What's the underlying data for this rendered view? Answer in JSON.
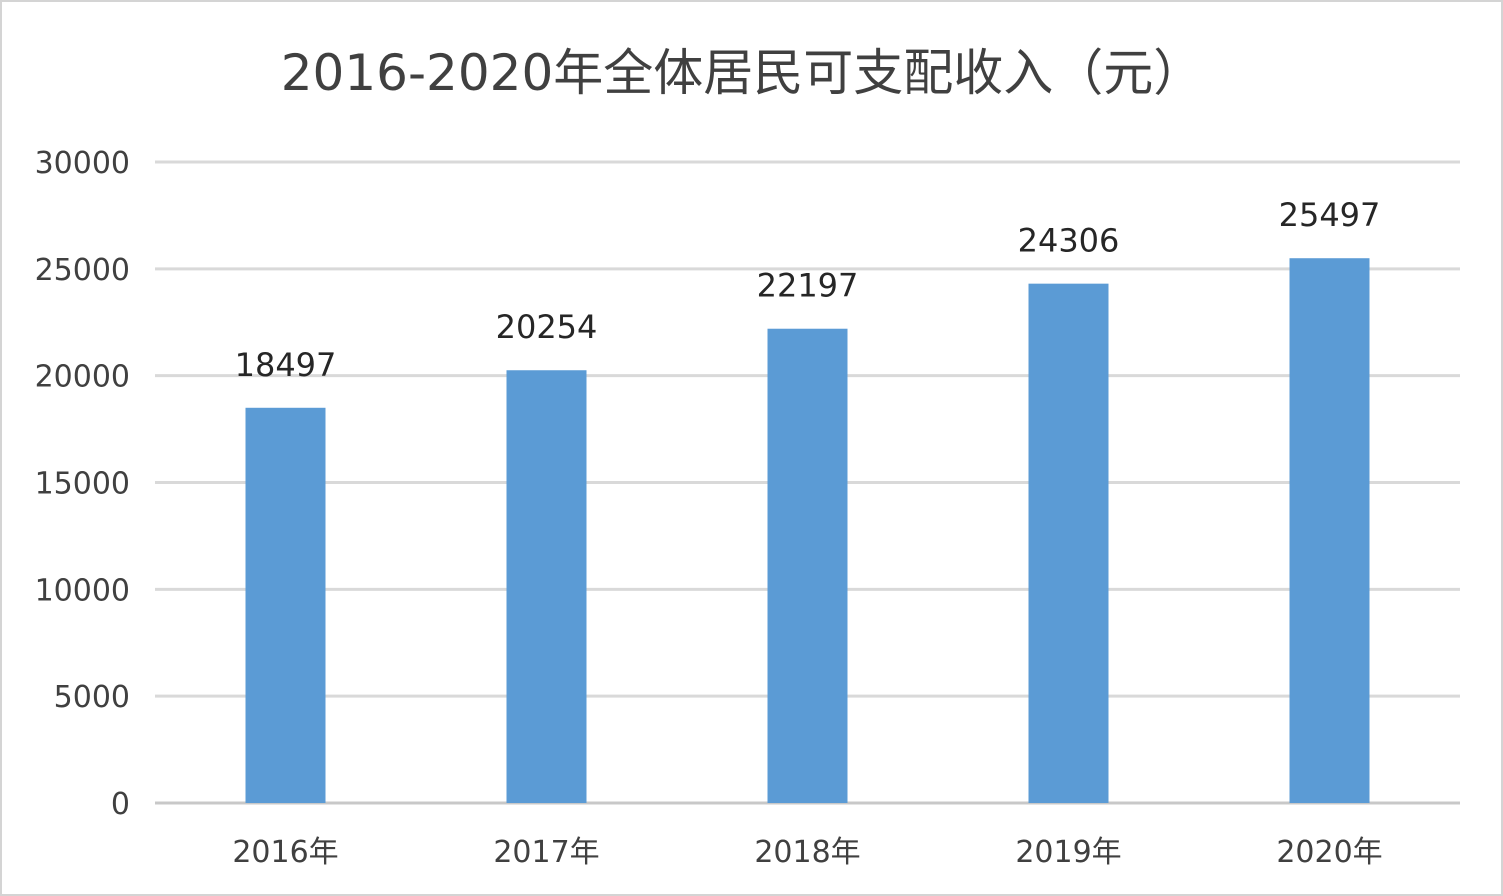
{
  "chart_data": {
    "type": "bar",
    "title": "2016-2020年全体居民可支配收入（元）",
    "categories": [
      "2016年",
      "2017年",
      "2018年",
      "2019年",
      "2020年"
    ],
    "values": [
      18497,
      20254,
      22197,
      24306,
      25497
    ],
    "data_labels": [
      "18497",
      "20254",
      "22197",
      "24306",
      "25497"
    ],
    "ylim": [
      0,
      30000
    ],
    "yticks": [
      0,
      5000,
      10000,
      15000,
      20000,
      25000,
      30000
    ],
    "ytick_labels": [
      "0",
      "5000",
      "10000",
      "15000",
      "20000",
      "25000",
      "30000"
    ],
    "xlabel": "",
    "ylabel": "",
    "grid": true,
    "legend": "none",
    "bar_color": "#5b9bd5"
  }
}
